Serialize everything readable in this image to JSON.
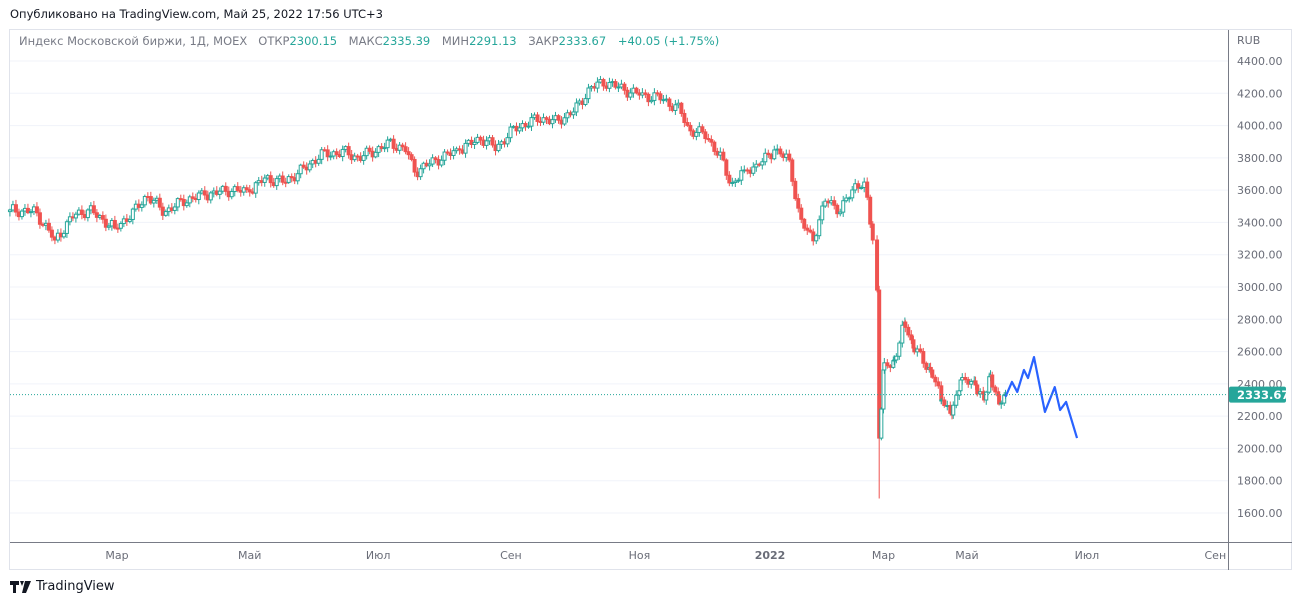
{
  "published": "Опубликовано на TradingView.com, Май 25, 2022 17:56 UTC+3",
  "legend": {
    "symbol": "Индекс Московской биржи, 1Д, MOEX",
    "open_label": "ОТКР",
    "open": "2300.15",
    "high_label": "МАКС",
    "high": "2335.39",
    "low_label": "МИН",
    "low": "2291.13",
    "close_label": "ЗАКР",
    "close": "2333.67",
    "change": "+40.05 (+1.75%)"
  },
  "brand": "TradingView",
  "colors": {
    "up": "#26a69a",
    "down": "#ef5350",
    "projection": "#2962ff",
    "grid": "#f0f3fa"
  },
  "chart_data": {
    "type": "candlestick",
    "title": "Индекс Московской биржи, 1Д, MOEX",
    "currency": "RUB",
    "x_unit": "days since 2021-03-01",
    "ylim": [
      1450,
      4560
    ],
    "y_ticks": [
      "4400.00",
      "4200.00",
      "4000.00",
      "3800.00",
      "3600.00",
      "3400.00",
      "3200.00",
      "3000.00",
      "2800.00",
      "2600.00",
      "2400.00",
      "2200.00",
      "2000.00",
      "1800.00",
      "1600.00"
    ],
    "x_ticks": [
      {
        "label": "Мар",
        "day": 0
      },
      {
        "label": "Май",
        "day": 62
      },
      {
        "label": "Июл",
        "day": 122
      },
      {
        "label": "Сен",
        "day": 184
      },
      {
        "label": "Ноя",
        "day": 244
      },
      {
        "label": "2022",
        "day": 305,
        "bold": true
      },
      {
        "label": "Мар",
        "day": 358
      },
      {
        "label": "Май",
        "day": 397
      },
      {
        "label": "Июл",
        "day": 453
      },
      {
        "label": "Сен",
        "day": 513
      }
    ],
    "close_path": [
      [
        -50,
        3477
      ],
      [
        -38,
        3465
      ],
      [
        -29,
        3291
      ],
      [
        -20,
        3446
      ],
      [
        -13,
        3477
      ],
      [
        -1,
        3365
      ],
      [
        8,
        3465
      ],
      [
        14,
        3570
      ],
      [
        22,
        3465
      ],
      [
        32,
        3539
      ],
      [
        41,
        3570
      ],
      [
        53,
        3601
      ],
      [
        62,
        3589
      ],
      [
        69,
        3675
      ],
      [
        78,
        3650
      ],
      [
        88,
        3737
      ],
      [
        95,
        3818
      ],
      [
        106,
        3836
      ],
      [
        113,
        3799
      ],
      [
        128,
        3892
      ],
      [
        135,
        3849
      ],
      [
        139,
        3712
      ],
      [
        149,
        3787
      ],
      [
        160,
        3849
      ],
      [
        170,
        3923
      ],
      [
        177,
        3861
      ],
      [
        186,
        3985
      ],
      [
        198,
        4047
      ],
      [
        205,
        4022
      ],
      [
        214,
        4096
      ],
      [
        221,
        4233
      ],
      [
        228,
        4270
      ],
      [
        235,
        4233
      ],
      [
        244,
        4189
      ],
      [
        254,
        4171
      ],
      [
        263,
        4096
      ],
      [
        267,
        3973
      ],
      [
        275,
        3942
      ],
      [
        282,
        3799
      ],
      [
        287,
        3632
      ],
      [
        293,
        3725
      ],
      [
        300,
        3756
      ],
      [
        307,
        3849
      ],
      [
        314,
        3787
      ],
      [
        319,
        3415
      ],
      [
        325,
        3291
      ],
      [
        331,
        3539
      ],
      [
        338,
        3477
      ],
      [
        345,
        3632
      ],
      [
        349,
        3650
      ],
      [
        353,
        3291
      ],
      [
        355,
        2981
      ],
      [
        356,
        2064
      ],
      [
        358,
        2486
      ],
      [
        363,
        2548
      ],
      [
        368,
        2783
      ],
      [
        372,
        2622
      ],
      [
        380,
        2486
      ],
      [
        385,
        2300
      ],
      [
        390,
        2207
      ],
      [
        394,
        2424
      ],
      [
        401,
        2393
      ],
      [
        405,
        2300
      ],
      [
        408,
        2455
      ],
      [
        412,
        2275
      ],
      [
        415,
        2333.67
      ]
    ],
    "extreme_low": {
      "day": 356,
      "value": 1690
    },
    "last_price": "2333.67",
    "projection": [
      [
        415,
        2320
      ],
      [
        418,
        2412
      ],
      [
        420.5,
        2350
      ],
      [
        423.6,
        2486
      ],
      [
        425.5,
        2436
      ],
      [
        428.3,
        2566
      ],
      [
        433.4,
        2226
      ],
      [
        438,
        2380
      ],
      [
        440.5,
        2238
      ],
      [
        443.3,
        2288
      ],
      [
        448.4,
        2064
      ]
    ]
  }
}
